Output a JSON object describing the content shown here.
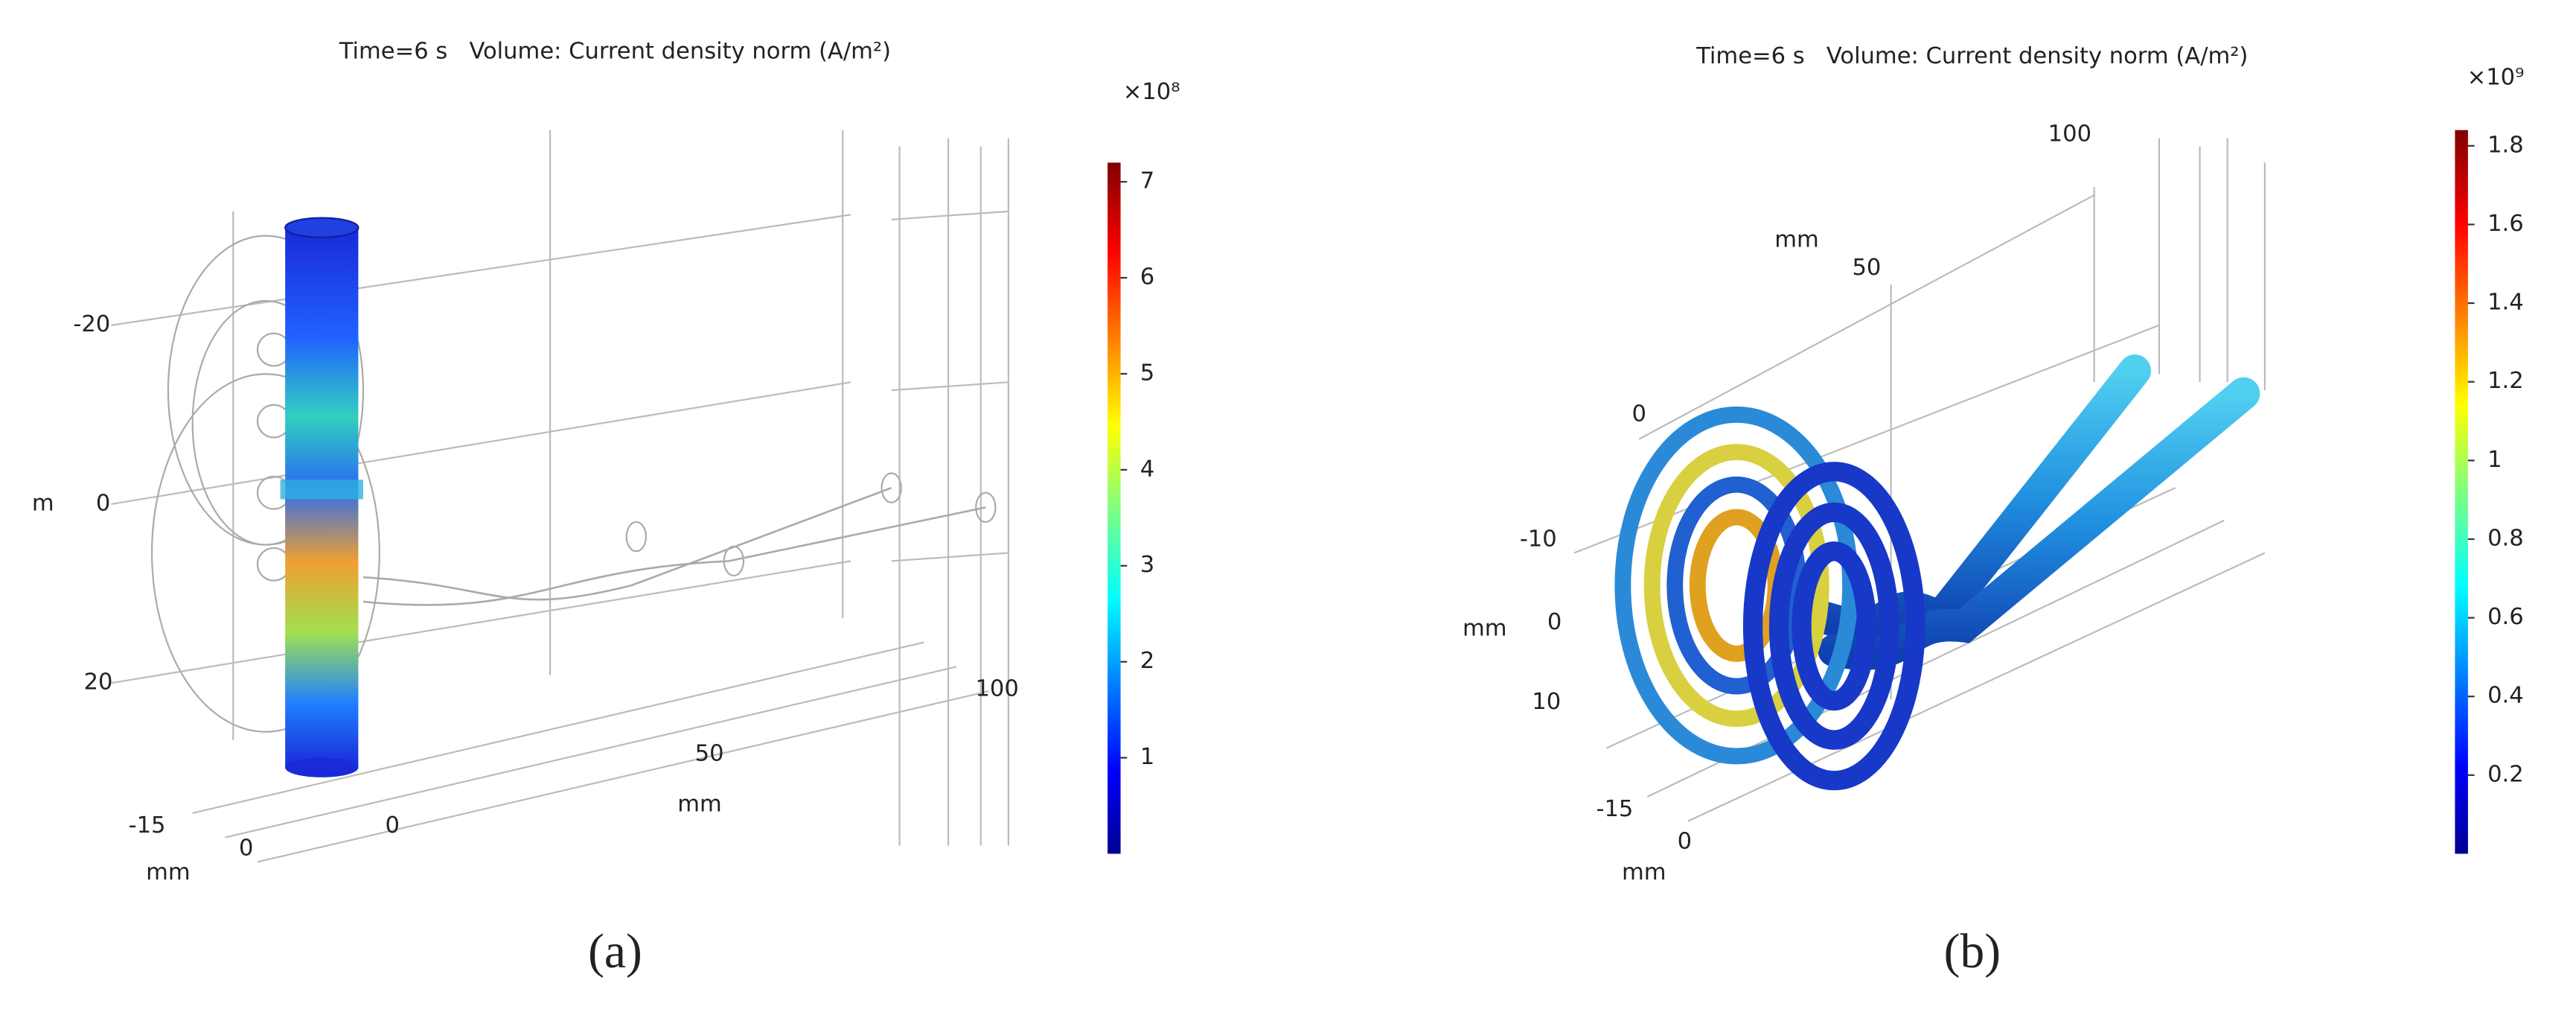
{
  "panels": [
    {
      "label": "(a)",
      "title": "Time=6 s   Volume: Current density norm (A/m²)",
      "axis_texts": [
        "-20",
        "m",
        "0",
        "20",
        "-15",
        "0",
        "mm",
        "0",
        "50",
        "mm",
        "100"
      ],
      "colorbar": {
        "multiplier": "×10⁸",
        "lim": [
          0,
          7.2
        ],
        "ticks": [
          1,
          2,
          3,
          4,
          5,
          6,
          7
        ]
      }
    },
    {
      "label": "(b)",
      "title": "Time=6 s   Volume: Current density norm (A/m²)",
      "axis_texts": [
        "100",
        "mm",
        "50",
        "0",
        "-10",
        "mm",
        "0",
        "10",
        "-15",
        "0",
        "mm"
      ],
      "colorbar": {
        "multiplier": "×10⁹",
        "lim": [
          0,
          1.84
        ],
        "ticks": [
          0.2,
          0.4,
          0.6,
          0.8,
          1,
          1.2,
          1.4,
          1.6,
          1.8
        ]
      }
    }
  ]
}
